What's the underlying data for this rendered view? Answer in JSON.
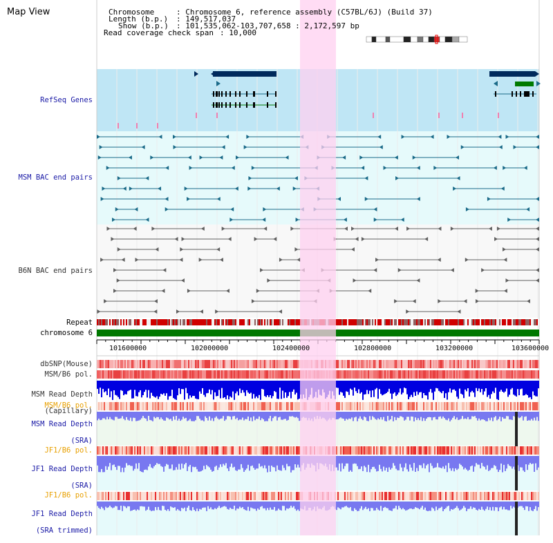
{
  "page": {
    "title": "Map View"
  },
  "info": {
    "chromosome_label": "Chromosome",
    "chromosome_value": ": Chromosome 6, reference assembly (C57BL/6J) (Build 37)",
    "length_label": "Length (b.p.)",
    "length_value": ": 149,517,037",
    "show_label": "Show (b.p.)",
    "show_value": ": 101,535,062-103,707,658 : 2,172,597 bp",
    "coverage_label": "Read coverage check span",
    "coverage_value": ": 10,000"
  },
  "tracks": {
    "refseq": "RefSeq Genes",
    "msm_bac": "MSM BAC end pairs",
    "b6n_bac": "B6N BAC end pairs",
    "repeat": "Repeat",
    "chromosome": "chromosome 6",
    "dbsnp": "dbSNP(Mouse)",
    "msm_b6_pol_1": "MSM/B6 pol.",
    "msm_depth_cap_1": "MSM Read Depth",
    "msm_depth_cap_2": "(Capillary)",
    "msm_b6_pol_2": "MSM/B6 pol.",
    "msm_depth_sra_1": "MSM Read Depth",
    "msm_depth_sra_2": "(SRA)",
    "jf1_b6_pol_1": "JF1/B6 pol.",
    "jf1_depth_sra_1": "JF1 Read Depth",
    "jf1_depth_sra_2": "(SRA)",
    "jf1_b6_pol_2": "JF1/B6 pol.",
    "jf1_depth_trim_1": "JF1 Read Depth",
    "jf1_depth_trim_2": "(SRA trimmed)"
  },
  "axis": {
    "range_bp": [
      101535062,
      103707658
    ],
    "ticks": [
      "101600000",
      "102000000",
      "102400000",
      "102800000",
      "103200000",
      "103600000"
    ],
    "tick_values": [
      101600000,
      102000000,
      102400000,
      102800000,
      103200000,
      103600000
    ]
  },
  "colors": {
    "refseq_bg": "#bfe6f5",
    "msm_bg": "#e6fafb",
    "b6n_bg": "#f8f8f8",
    "highlight": "#ffd0f0",
    "gene_dark": "#002a5c",
    "gene_green": "#007a00",
    "chrom_green": "#007800",
    "msm_line": "#1a6a88",
    "b6n_line": "#606060",
    "depth_dark_blue": "#0000e0",
    "depth_light_blue": "#7878f0"
  }
}
